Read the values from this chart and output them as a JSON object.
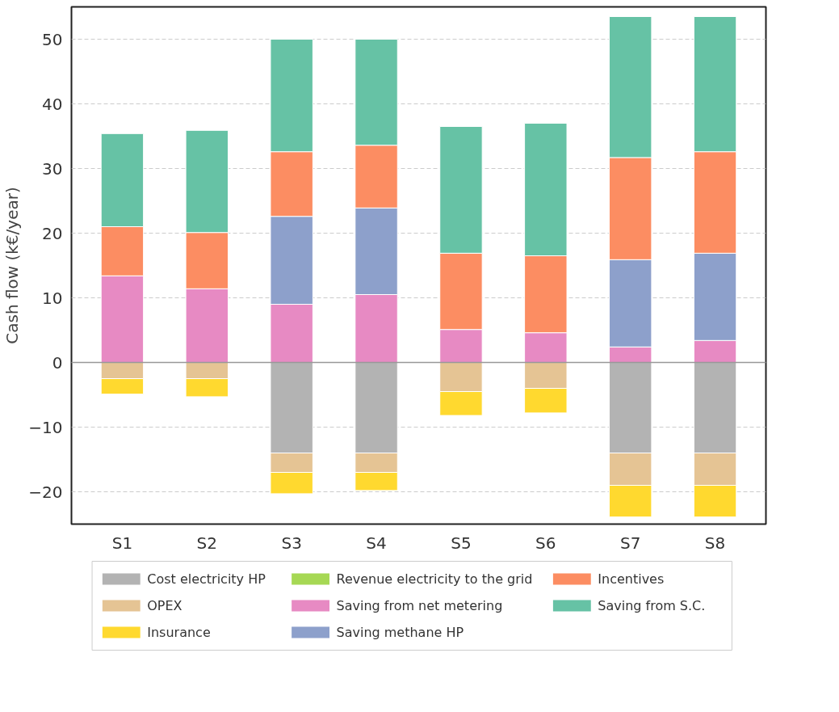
{
  "chart_data": {
    "type": "bar",
    "stacked": true,
    "ylabel": "Cash flow (k€/year)",
    "categories": [
      "S1",
      "S2",
      "S3",
      "S4",
      "S5",
      "S6",
      "S7",
      "S8"
    ],
    "series": [
      {
        "name": "Cost electricity HP",
        "color": "#b3b3b3",
        "values": [
          null,
          null,
          -14,
          -14,
          null,
          null,
          -14,
          -14
        ]
      },
      {
        "name": "OPEX",
        "color": "#e5c494",
        "values": [
          -2.5,
          -2.5,
          -3,
          -3,
          -4.5,
          -4,
          -5,
          -5
        ]
      },
      {
        "name": "Insurance",
        "color": "#ffd92f",
        "values": [
          -2.4,
          -2.8,
          -3.3,
          -2.8,
          -3.7,
          -3.8,
          -4.9,
          -4.9
        ]
      },
      {
        "name": "Revenue electricity to the grid",
        "color": "#a6d854",
        "values": [
          null,
          null,
          null,
          null,
          null,
          null,
          null,
          null
        ]
      },
      {
        "name": "Saving from net metering",
        "color": "#e78ac3",
        "values": [
          13.4,
          11.4,
          9.0,
          10.5,
          5.1,
          4.6,
          2.4,
          3.4
        ]
      },
      {
        "name": "Saving methane HP",
        "color": "#8da0cb",
        "values": [
          null,
          null,
          13.6,
          13.4,
          null,
          null,
          13.5,
          13.5
        ]
      },
      {
        "name": "Incentives",
        "color": "#fc8d62",
        "values": [
          7.6,
          8.7,
          10.0,
          9.7,
          11.8,
          11.9,
          15.8,
          15.7
        ]
      },
      {
        "name": "Saving from S.C.",
        "color": "#66c2a5",
        "values": [
          14.4,
          15.8,
          17.4,
          16.4,
          19.6,
          20.5,
          21.8,
          20.9
        ]
      }
    ],
    "ylim": [
      -25,
      55
    ],
    "yticks": [
      -20,
      -10,
      0,
      10,
      20,
      30,
      40,
      50
    ],
    "ref_lines": [
      {
        "axis": "y",
        "value": 0,
        "color": "#999999"
      }
    ],
    "grid": "y",
    "legend": "bottom"
  }
}
